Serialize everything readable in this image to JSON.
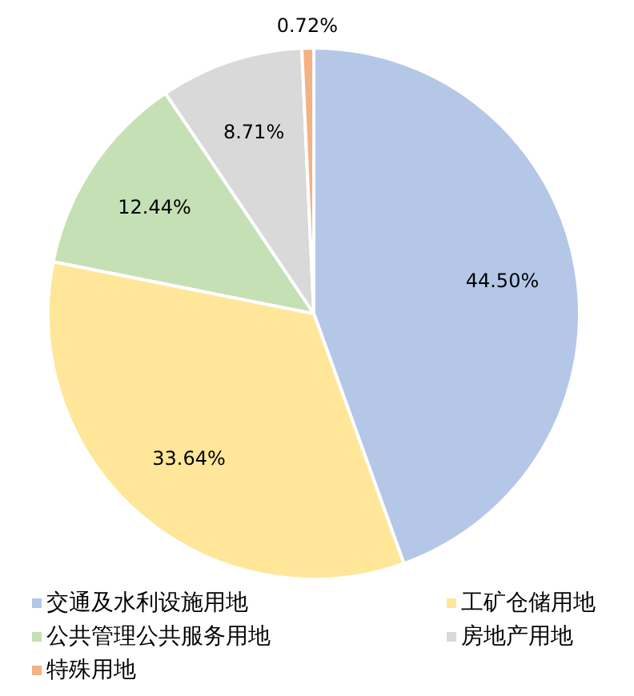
{
  "chart_data": {
    "type": "pie",
    "categories": [
      "交通及水利设施用地",
      "工矿仓储用地",
      "公共管理公共服务用地",
      "房地产用地",
      "特殊用地"
    ],
    "values": [
      44.5,
      33.64,
      12.44,
      8.71,
      0.72
    ],
    "colors": [
      "#b4c7e7",
      "#ffe699",
      "#c5e0b4",
      "#d9d9d9",
      "#f4b183"
    ],
    "value_labels": [
      "44.50%",
      "33.64%",
      "12.44%",
      "8.71%",
      "0.72%"
    ],
    "legend": "bottom"
  }
}
